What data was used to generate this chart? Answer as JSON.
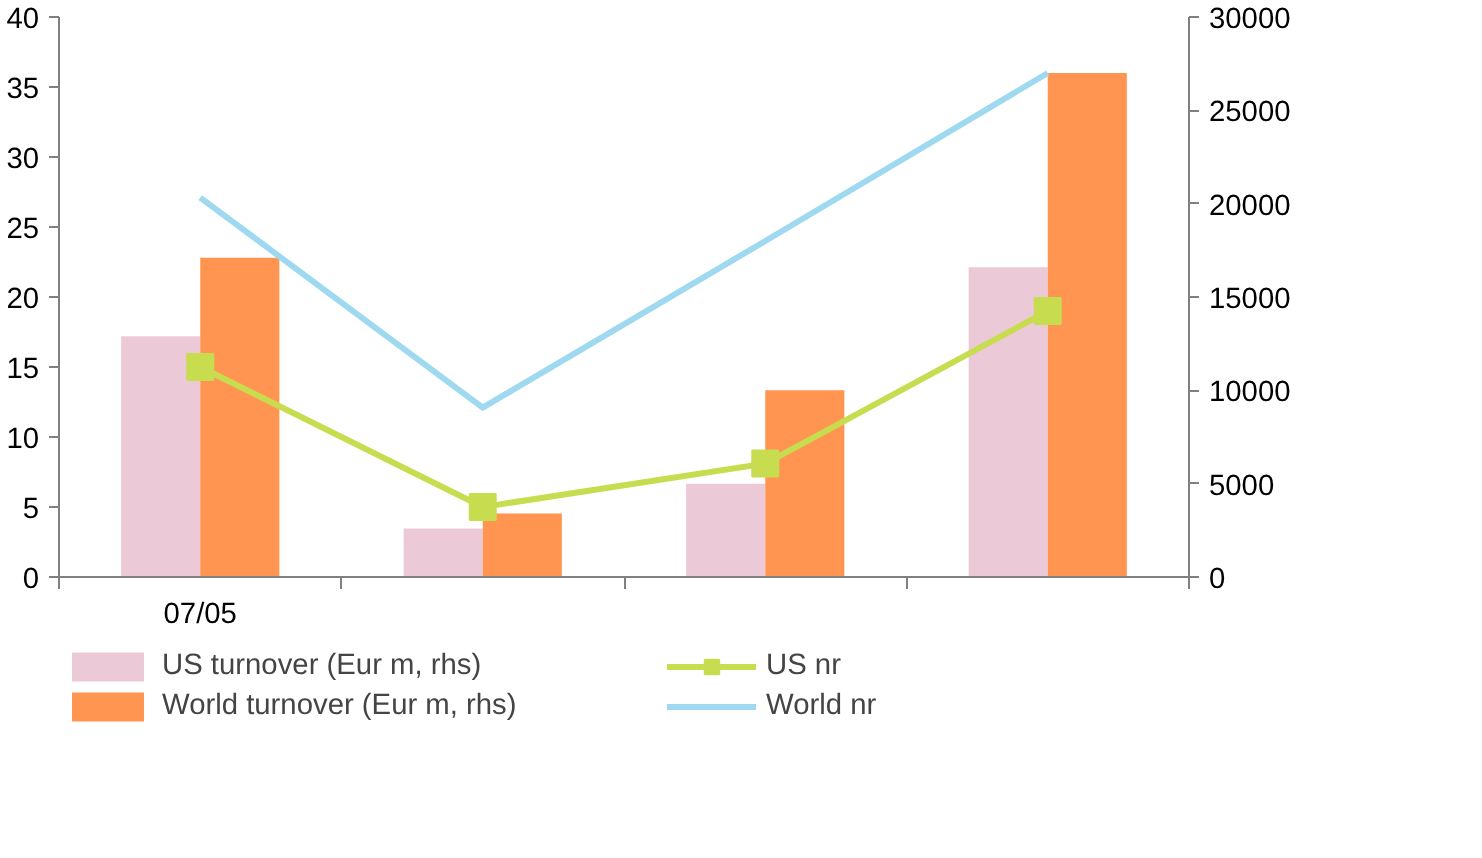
{
  "chart_data": {
    "type": "bar",
    "categories": [
      "07/05",
      null,
      null,
      null
    ],
    "ylim": [
      0,
      40
    ],
    "yticks": [
      0,
      5,
      10,
      15,
      20,
      25,
      30,
      35,
      40
    ],
    "y2lim": [
      0,
      30000
    ],
    "y2ticks": [
      0,
      5000,
      10000,
      15000,
      20000,
      25000,
      30000
    ],
    "grid": false,
    "legend": "bottom",
    "series": [
      {
        "name": "US turnover (Eur m, rhs)",
        "axis": "y2",
        "color": "#ebc9d6",
        "values": [
          12900,
          2600,
          5000,
          16600
        ]
      },
      {
        "name": "World turnover (Eur m, rhs)",
        "axis": "y2",
        "color": "#ff9550",
        "values": [
          17100,
          3400,
          10000,
          27000
        ]
      },
      {
        "name": "US nr",
        "type": "line",
        "color": "#c8dc50",
        "marker": "square",
        "values": [
          15.0,
          5.0,
          8.1,
          19.0
        ]
      },
      {
        "name": "World nr",
        "type": "line",
        "color": "#9fd9f0",
        "marker": "none",
        "values": [
          27.1,
          12.1,
          24.0,
          36.0
        ]
      }
    ]
  }
}
